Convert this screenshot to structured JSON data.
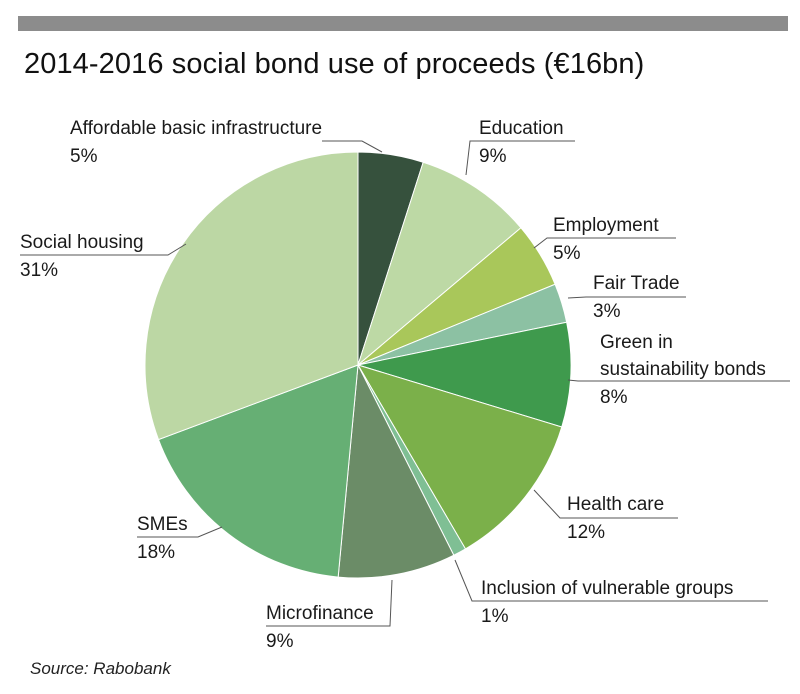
{
  "title": "2014-2016 social bond use of proceeds (€16bn)",
  "source": "Source: Rabobank",
  "chart_data": {
    "type": "pie",
    "start": "12 o'clock",
    "direction": "clockwise",
    "slices": [
      {
        "label": "Affordable basic infrastructure",
        "value_label": "5%",
        "value": 5,
        "color": "#36513d"
      },
      {
        "label": "Education",
        "value_label": "9%",
        "value": 9,
        "color": "#bdd9a5"
      },
      {
        "label": "Employment",
        "value_label": "5%",
        "value": 5,
        "color": "#a9c75a"
      },
      {
        "label": "Fair Trade",
        "value_label": "3%",
        "value": 3,
        "color": "#8cc1a3"
      },
      {
        "label": "Green in sustainability bonds",
        "value_label": "8%",
        "value": 8,
        "color": "#3f9a4d"
      },
      {
        "label": "Health care",
        "value_label": "12%",
        "value": 12,
        "color": "#7bb04a"
      },
      {
        "label": "Inclusion of vulnerable groups",
        "value_label": "1%",
        "value": 1,
        "color": "#7fbf94"
      },
      {
        "label": "Microfinance",
        "value_label": "9%",
        "value": 9,
        "color": "#6b8c67"
      },
      {
        "label": "SMEs",
        "value_label": "18%",
        "value": 18,
        "color": "#66af74"
      },
      {
        "label": "Social housing",
        "value_label": "31%",
        "value": 31,
        "color": "#bcd7a4"
      }
    ]
  }
}
